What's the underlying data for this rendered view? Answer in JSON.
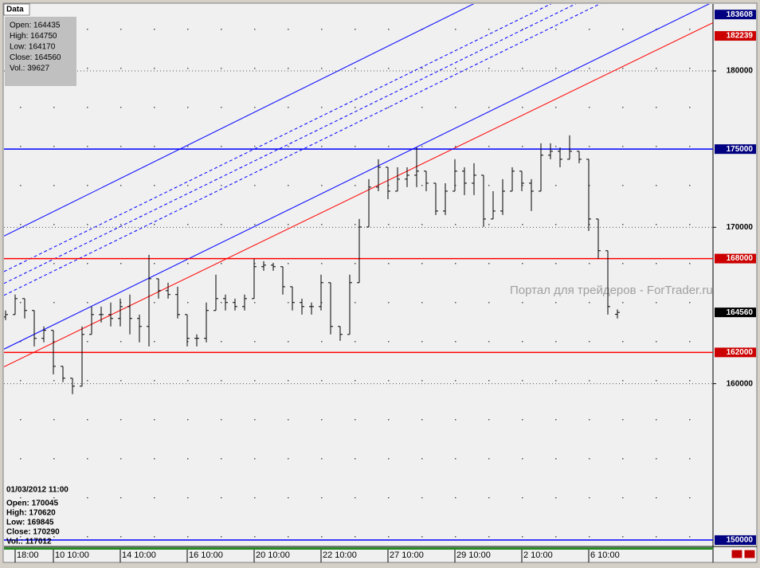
{
  "chart_data": {
    "type": "ohlc",
    "info_top": {
      "tab": "Data",
      "lines": [
        "Open: 164435",
        "High: 164750",
        "Low: 164170",
        "Close: 164560",
        "Vol.: 39627"
      ]
    },
    "info_bottom": {
      "time": "01/03/2012 11:00",
      "lines": [
        "Open: 170045",
        "High: 170620",
        "Low: 169845",
        "Close: 170290",
        "Vol.: 117012"
      ]
    },
    "watermark": "Портал для трейдеров - ForTrader.ru",
    "categories": [
      null,
      "18:00",
      null,
      null,
      null,
      "10 10:00",
      null,
      null,
      null,
      null,
      null,
      null,
      "14 10:00",
      null,
      null,
      null,
      null,
      null,
      null,
      "16 10:00",
      null,
      null,
      null,
      null,
      null,
      null,
      "20 10:00",
      null,
      null,
      null,
      null,
      null,
      null,
      "22 10:00",
      null,
      null,
      null,
      null,
      null,
      null,
      "27 10:00",
      null,
      null,
      null,
      null,
      null,
      null,
      "29 10:00",
      null,
      null,
      null,
      null,
      null,
      null,
      "2 10:00",
      null,
      null,
      null,
      null,
      null,
      null,
      "6 10:00",
      null,
      null,
      null
    ],
    "open": [
      164270,
      164420,
      165440,
      164680,
      162900,
      163410,
      161110,
      160350,
      159840,
      163150,
      164420,
      164420,
      164170,
      164930,
      164170,
      163660,
      166710,
      165950,
      165700,
      164420,
      162900,
      162900,
      164680,
      165440,
      165190,
      164930,
      165440,
      167480,
      167580,
      167480,
      166200,
      165190,
      164930,
      164930,
      166460,
      163660,
      163150,
      166460,
      170020,
      172570,
      173840,
      172310,
      173080,
      173330,
      173590,
      172820,
      171040,
      172310,
      173590,
      172820,
      173330,
      170530,
      171040,
      172310,
      173590,
      172820,
      172310,
      174610,
      174860,
      174350,
      174860,
      174350,
      170530,
      168500,
      164435
    ],
    "high": [
      164680,
      165700,
      165440,
      164680,
      163660,
      163410,
      161110,
      160350,
      163660,
      164930,
      164930,
      165190,
      165440,
      165700,
      164420,
      168240,
      166710,
      166460,
      166200,
      164420,
      163150,
      165190,
      166970,
      165700,
      165440,
      165700,
      167990,
      167830,
      167730,
      167480,
      166200,
      165440,
      165190,
      166970,
      166460,
      163660,
      166970,
      170530,
      173080,
      174350,
      173840,
      173840,
      173840,
      175110,
      173590,
      172820,
      172820,
      174350,
      173840,
      174100,
      173330,
      172310,
      173080,
      173840,
      173590,
      173080,
      175370,
      175370,
      175110,
      175880,
      174860,
      174350,
      170530,
      168500,
      164750
    ],
    "low": [
      164070,
      164420,
      164170,
      162380,
      162640,
      160600,
      160100,
      159330,
      159840,
      163150,
      163910,
      163660,
      163660,
      163150,
      162640,
      162380,
      165440,
      165440,
      164170,
      162380,
      162380,
      162640,
      164680,
      164680,
      164680,
      164680,
      165440,
      167220,
      167220,
      165700,
      164680,
      164420,
      164420,
      164680,
      163150,
      162740,
      163150,
      166460,
      170020,
      172310,
      171800,
      172310,
      172570,
      172570,
      172310,
      170790,
      170790,
      172310,
      172060,
      172060,
      170020,
      170530,
      170790,
      172310,
      172310,
      171040,
      172310,
      174350,
      173840,
      174350,
      174100,
      169770,
      167990,
      164420,
      164170
    ],
    "close": [
      164420,
      165440,
      164680,
      162900,
      163410,
      161110,
      160350,
      159840,
      163150,
      164420,
      164420,
      164170,
      164930,
      164170,
      163660,
      166710,
      165950,
      165700,
      164420,
      162900,
      162900,
      164680,
      165440,
      165190,
      164930,
      165440,
      167480,
      167580,
      167480,
      166200,
      165190,
      164930,
      164930,
      166460,
      163660,
      163150,
      166460,
      170020,
      172570,
      173840,
      172310,
      173080,
      173330,
      173590,
      172820,
      171040,
      172310,
      173590,
      172820,
      173330,
      170530,
      171040,
      172310,
      173590,
      172820,
      172310,
      174610,
      174860,
      174350,
      174860,
      174350,
      170530,
      168500,
      164930,
      164560
    ],
    "color": "#000000",
    "ylim": [
      149640,
      184280
    ],
    "yticks": [
      160000,
      170000,
      180000
    ],
    "levels": [
      {
        "value": 175000,
        "color": "#0000ff"
      },
      {
        "value": 168000,
        "color": "#ff0000"
      },
      {
        "value": 162000,
        "color": "#ff0000"
      },
      {
        "value": 150000,
        "color": "#0000ff"
      }
    ],
    "trendlines": [
      {
        "color": "#0000ff",
        "dash": false,
        "points": [
          [
            0,
            169490
          ],
          [
            48,
            184000
          ]
        ]
      },
      {
        "color": "#0000ff",
        "dash": true,
        "points": [
          [
            0,
            167220
          ],
          [
            48,
            181580
          ]
        ]
      },
      {
        "color": "#0000ff",
        "dash": true,
        "points": [
          [
            0,
            166460
          ],
          [
            48,
            180810
          ]
        ]
      },
      {
        "color": "#0000ff",
        "dash": true,
        "points": [
          [
            0,
            165700
          ],
          [
            48,
            180050
          ]
        ]
      },
      {
        "color": "#0000ff",
        "dash": false,
        "points": [
          [
            0,
            162260
          ],
          [
            71,
            183510
          ]
        ],
        "label": 183608
      },
      {
        "color": "#ff0000",
        "dash": false,
        "points": [
          [
            0,
            161130
          ],
          [
            71,
            182190
          ]
        ],
        "label": 182239
      }
    ]
  }
}
